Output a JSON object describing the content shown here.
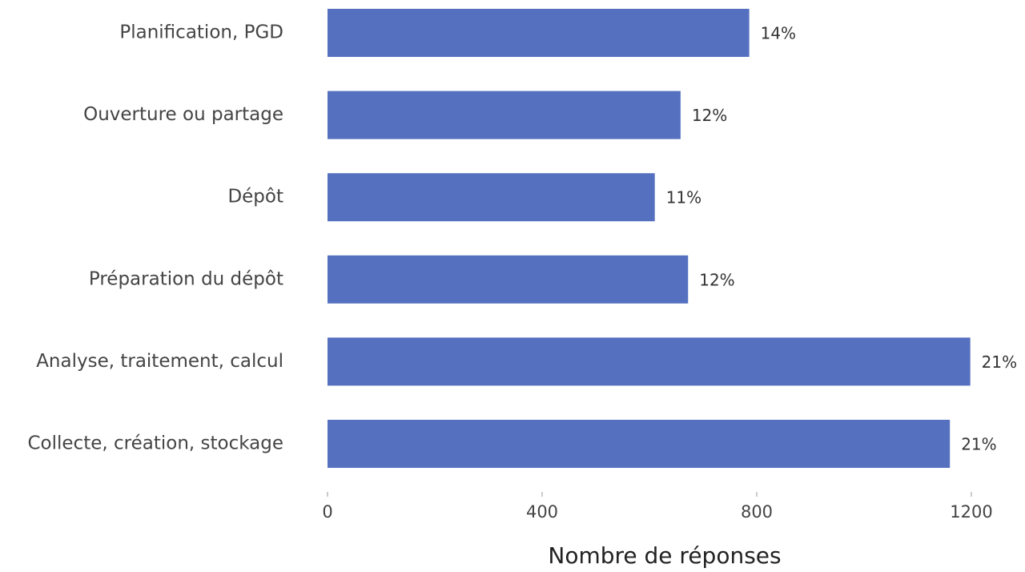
{
  "chart_data": {
    "type": "bar",
    "orientation": "horizontal",
    "x_label": "Nombre de réponses",
    "categories": [
      "Planification, PGD",
      "Ouverture ou partage",
      "Dépôt",
      "Préparation du dépôt",
      "Analyse, traitement, calcul",
      "Collecte, création, stockage"
    ],
    "values": [
      786,
      658,
      610,
      672,
      1198,
      1160
    ],
    "shares": [
      "14%",
      "12%",
      "11%",
      "12%",
      "21%",
      "21%"
    ],
    "color": "#5470bf",
    "xlim": [
      0,
      1200
    ],
    "xticks": [
      0,
      400,
      800,
      1200
    ],
    "grid": false
  }
}
